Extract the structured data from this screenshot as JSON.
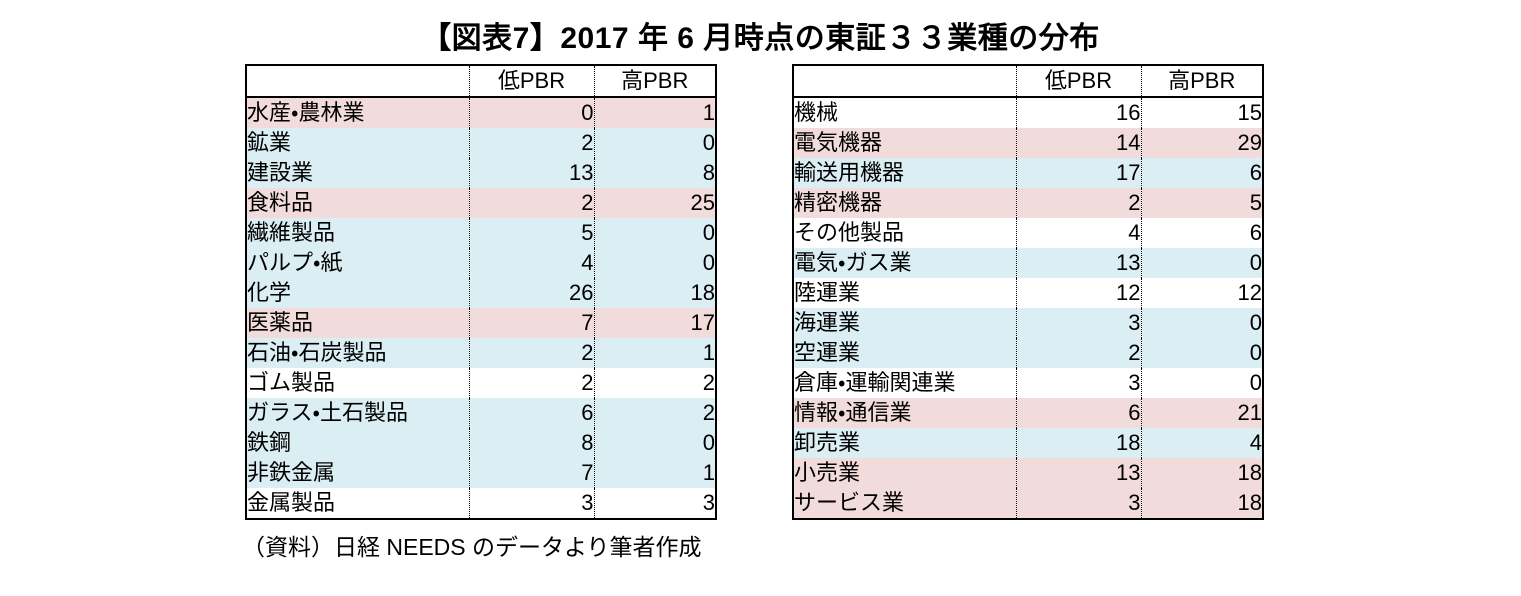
{
  "title": "【図表7】2017 年 6 月時点の東証３３業種の分布",
  "source_note": "（資料）日経 NEEDS のデータより筆者作成",
  "colors": {
    "pink": "#F2DCDB",
    "blue": "#DAEEF3",
    "white": "#FFFFFF",
    "border": "#000000"
  },
  "tables": [
    {
      "name": "left",
      "headers": [
        "",
        "低PBR",
        "高PBR"
      ],
      "rows": [
        {
          "industry": "水産・農林業",
          "low": 0,
          "high": 1,
          "highlight": "pink"
        },
        {
          "industry": "鉱業",
          "low": 2,
          "high": 0,
          "highlight": "blue"
        },
        {
          "industry": "建設業",
          "low": 13,
          "high": 8,
          "highlight": "blue"
        },
        {
          "industry": "食料品",
          "low": 2,
          "high": 25,
          "highlight": "pink"
        },
        {
          "industry": "繊維製品",
          "low": 5,
          "high": 0,
          "highlight": "blue"
        },
        {
          "industry": "パルプ・紙",
          "low": 4,
          "high": 0,
          "highlight": "blue"
        },
        {
          "industry": "化学",
          "low": 26,
          "high": 18,
          "highlight": "blue"
        },
        {
          "industry": "医薬品",
          "low": 7,
          "high": 17,
          "highlight": "pink"
        },
        {
          "industry": "石油・石炭製品",
          "low": 2,
          "high": 1,
          "highlight": "blue"
        },
        {
          "industry": "ゴム製品",
          "low": 2,
          "high": 2,
          "highlight": "white"
        },
        {
          "industry": "ガラス・土石製品",
          "low": 6,
          "high": 2,
          "highlight": "blue"
        },
        {
          "industry": "鉄鋼",
          "low": 8,
          "high": 0,
          "highlight": "blue"
        },
        {
          "industry": "非鉄金属",
          "low": 7,
          "high": 1,
          "highlight": "blue"
        },
        {
          "industry": "金属製品",
          "low": 3,
          "high": 3,
          "highlight": "white"
        }
      ]
    },
    {
      "name": "right",
      "headers": [
        "",
        "低PBR",
        "高PBR"
      ],
      "rows": [
        {
          "industry": "機械",
          "low": 16,
          "high": 15,
          "highlight": "white"
        },
        {
          "industry": "電気機器",
          "low": 14,
          "high": 29,
          "highlight": "pink"
        },
        {
          "industry": "輸送用機器",
          "low": 17,
          "high": 6,
          "highlight": "blue"
        },
        {
          "industry": "精密機器",
          "low": 2,
          "high": 5,
          "highlight": "pink"
        },
        {
          "industry": "その他製品",
          "low": 4,
          "high": 6,
          "highlight": "white"
        },
        {
          "industry": "電気・ガス業",
          "low": 13,
          "high": 0,
          "highlight": "blue"
        },
        {
          "industry": "陸運業",
          "low": 12,
          "high": 12,
          "highlight": "white"
        },
        {
          "industry": "海運業",
          "low": 3,
          "high": 0,
          "highlight": "blue"
        },
        {
          "industry": "空運業",
          "low": 2,
          "high": 0,
          "highlight": "blue"
        },
        {
          "industry": "倉庫・運輸関連業",
          "low": 3,
          "high": 0,
          "highlight": "white"
        },
        {
          "industry": "情報・通信業",
          "low": 6,
          "high": 21,
          "highlight": "pink"
        },
        {
          "industry": "卸売業",
          "low": 18,
          "high": 4,
          "highlight": "blue"
        },
        {
          "industry": "小売業",
          "low": 13,
          "high": 18,
          "highlight": "pink"
        },
        {
          "industry": "サービス業",
          "low": 3,
          "high": 18,
          "highlight": "pink"
        }
      ]
    }
  ]
}
